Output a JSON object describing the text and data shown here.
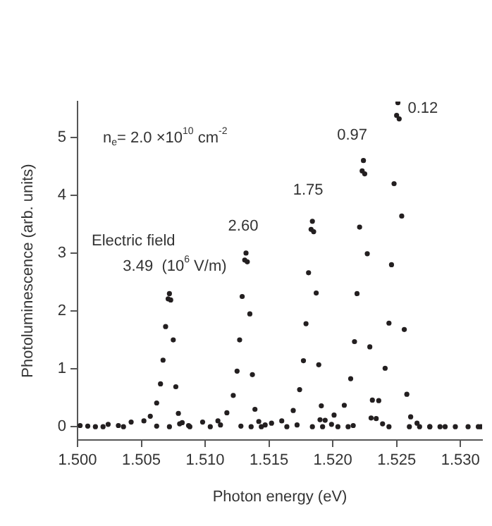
{
  "chart_data": {
    "type": "scatter",
    "xlabel": "Photon energy (eV)",
    "ylabel": "Photoluminescence (arb. units)",
    "xlim": [
      1.5,
      1.5317
    ],
    "ylim": [
      -0.23,
      5.62
    ],
    "xticks": [
      {
        "value": 1.5,
        "label": "1.500"
      },
      {
        "value": 1.505,
        "label": "1.505"
      },
      {
        "value": 1.51,
        "label": "1.510"
      },
      {
        "value": 1.515,
        "label": "1.515"
      },
      {
        "value": 1.52,
        "label": "1.520"
      },
      {
        "value": 1.525,
        "label": "1.525"
      },
      {
        "value": 1.53,
        "label": "1.530"
      }
    ],
    "yticks": [
      0,
      1,
      2,
      3,
      4,
      5
    ],
    "grid": false,
    "legend": false,
    "marker": "circle",
    "series": [
      {
        "color": "#231f20",
        "x": [
          1.5002,
          1.5024,
          1.5042,
          1.5052,
          1.5057,
          1.5062,
          1.5065,
          1.5067,
          1.5069,
          1.5071,
          1.5072,
          1.5073,
          1.5075,
          1.5077,
          1.5079,
          1.5082,
          1.5087,
          1.5104,
          1.5144,
          1.5184,
          1.5244,
          1.5284,
          1.5314
        ],
        "values": [
          0.02,
          0.04,
          0.08,
          0.1,
          0.18,
          0.41,
          0.74,
          1.15,
          1.73,
          2.21,
          2.3,
          2.19,
          1.5,
          0.69,
          0.23,
          0.07,
          0.02,
          0,
          0,
          0,
          0,
          0,
          0
        ]
      },
      {
        "color": "#231f20",
        "x": [
          1.5008,
          1.5032,
          1.508,
          1.5098,
          1.511,
          1.5117,
          1.5122,
          1.5125,
          1.5127,
          1.5129,
          1.5131,
          1.5132,
          1.5133,
          1.5135,
          1.5137,
          1.5139,
          1.5142,
          1.5147,
          1.5164,
          1.5204,
          1.5268,
          1.5296
        ],
        "values": [
          0.01,
          0.02,
          0.05,
          0.08,
          0.1,
          0.24,
          0.54,
          0.96,
          1.5,
          2.25,
          2.88,
          3.0,
          2.85,
          1.95,
          0.9,
          0.3,
          0.09,
          0.03,
          0,
          0,
          0,
          0
        ]
      },
      {
        "color": "#231f20",
        "x": [
          1.5014,
          1.5062,
          1.5112,
          1.5152,
          1.516,
          1.5169,
          1.5174,
          1.5177,
          1.5179,
          1.5181,
          1.5183,
          1.5184,
          1.5185,
          1.5187,
          1.5189,
          1.5191,
          1.5194,
          1.5199,
          1.5212,
          1.5276,
          1.5306
        ],
        "values": [
          0,
          0.01,
          0.03,
          0.06,
          0.1,
          0.28,
          0.64,
          1.14,
          1.78,
          2.66,
          3.41,
          3.55,
          3.37,
          2.31,
          1.07,
          0.36,
          0.11,
          0.04,
          0,
          0,
          0
        ]
      },
      {
        "color": "#231f20",
        "x": [
          1.502,
          1.5072,
          1.5128,
          1.5172,
          1.519,
          1.5201,
          1.5209,
          1.5214,
          1.5217,
          1.5219,
          1.5221,
          1.5223,
          1.5224,
          1.5225,
          1.5227,
          1.5229,
          1.5231,
          1.5234,
          1.5239,
          1.526,
          1.5288
        ],
        "values": [
          0,
          0,
          0.01,
          0.03,
          0.12,
          0.2,
          0.37,
          0.83,
          1.47,
          2.3,
          3.45,
          4.42,
          4.6,
          4.37,
          2.99,
          1.38,
          0.46,
          0.14,
          0.05,
          0,
          0
        ]
      },
      {
        "color": "#231f20",
        "x": [
          1.5036,
          1.5088,
          1.5136,
          1.5192,
          1.5216,
          1.523,
          1.5236,
          1.5241,
          1.5244,
          1.5246,
          1.5248,
          1.525,
          1.5251,
          1.5252,
          1.5254,
          1.5256,
          1.5258,
          1.5261,
          1.5266,
          1.5276,
          1.5316
        ],
        "values": [
          0,
          0,
          0,
          0,
          0.02,
          0.15,
          0.45,
          1.01,
          1.79,
          2.8,
          4.2,
          5.38,
          5.6,
          5.32,
          3.64,
          1.68,
          0.56,
          0.17,
          0.06,
          0,
          0
        ]
      }
    ],
    "annotations": [
      "n$_{e}$= 2.0 ×10$^{10}$ cm$^{-2}$",
      {
        "text": "0.12",
        "x": 1.5251,
        "y": 5.6
      },
      {
        "text": "0.97",
        "x": 1.5224,
        "y": 4.6
      },
      {
        "text": "1.75",
        "x": 1.5184,
        "y": 3.55
      },
      {
        "text": "2.60",
        "x": 1.5132,
        "y": 3.0
      },
      "Electric field",
      {
        "text": "3.49  (10$^{6}$ V/m)",
        "x": 1.5072,
        "y": 2.3
      }
    ]
  }
}
